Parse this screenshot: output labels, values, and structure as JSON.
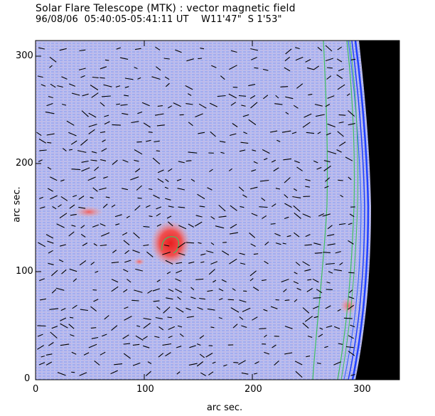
{
  "header": {
    "title": "Solar Flare Telescope (MTK) : vector magnetic field",
    "subtitle": "96/08/06  05:40:05-05:41:11 UT    W11'47\"  S 1'53\""
  },
  "axes": {
    "xlabel": "arc sec.",
    "ylabel": "arc sec.",
    "xticks": [
      "0",
      "100",
      "200",
      "300"
    ],
    "yticks": [
      "0",
      "100",
      "200",
      "300"
    ],
    "xlim": [
      0,
      335
    ],
    "ylim": [
      0,
      315
    ]
  },
  "colors": {
    "background_field": "#aab4f0",
    "positive_polarity": "#e84040",
    "limb_black": "#000000",
    "contour_green": "#40c060",
    "contour_blue": "#2040ff",
    "vectors": "#000000"
  },
  "features": {
    "sunspot_label": "",
    "limb_label": ""
  }
}
